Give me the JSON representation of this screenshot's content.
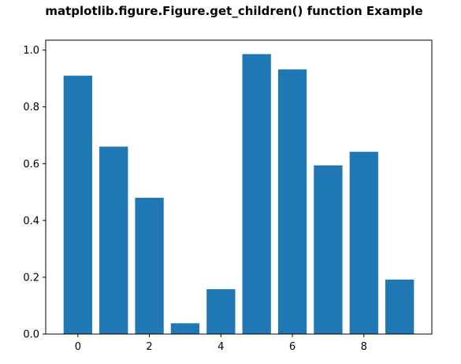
{
  "chart_data": {
    "type": "bar",
    "title": "matplotlib.figure.Figure.get_children() function Example",
    "x": [
      0,
      1,
      2,
      3,
      4,
      5,
      6,
      7,
      8,
      9
    ],
    "values": [
      0.91,
      0.66,
      0.48,
      0.038,
      0.158,
      0.986,
      0.932,
      0.594,
      0.642,
      0.192
    ],
    "bar_color": "#1f77b4",
    "xlim": [
      -0.9,
      9.9
    ],
    "ylim": [
      0.0,
      1.035
    ],
    "xticks": [
      0,
      2,
      4,
      6,
      8
    ],
    "xtick_labels": [
      "0",
      "2",
      "4",
      "6",
      "8"
    ],
    "yticks": [
      0.0,
      0.2,
      0.4,
      0.6,
      0.8,
      1.0
    ],
    "ytick_labels": [
      "0.0",
      "0.2",
      "0.4",
      "0.6",
      "0.8",
      "1.0"
    ],
    "xlabel": "",
    "ylabel": "",
    "grid": false,
    "legend": "none"
  }
}
